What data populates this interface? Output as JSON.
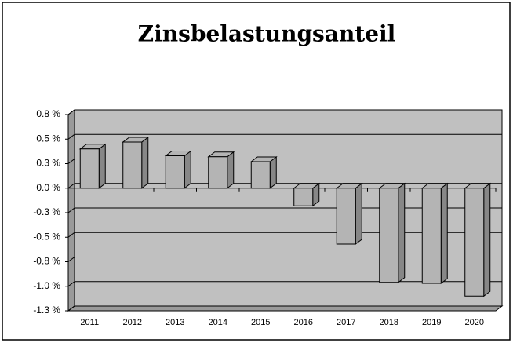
{
  "chart_data": {
    "type": "bar",
    "title": "Zinsbelastungsanteil",
    "categories": [
      "2011",
      "2012",
      "2013",
      "2014",
      "2015",
      "2016",
      "2017",
      "2018",
      "2019",
      "2020"
    ],
    "values": [
      0.4,
      0.47,
      0.33,
      0.32,
      0.27,
      -0.18,
      -0.57,
      -0.96,
      -0.97,
      -1.1
    ],
    "color": "#b4b4b4",
    "ylim": [
      -1.25,
      0.75
    ],
    "yticks": [
      {
        "value": 0.75,
        "label": "0.8 %"
      },
      {
        "value": 0.5,
        "label": "0.5 %"
      },
      {
        "value": 0.25,
        "label": "0.3 %"
      },
      {
        "value": 0,
        "label": "0.0 %"
      },
      {
        "value": -0.25,
        "label": "-0.3 %"
      },
      {
        "value": -0.5,
        "label": "-0.5 %"
      },
      {
        "value": -0.75,
        "label": "-0.8 %"
      },
      {
        "value": -1,
        "label": "-1.0 %"
      },
      {
        "value": -1.25,
        "label": "-1.3 %"
      }
    ],
    "grid": true
  }
}
